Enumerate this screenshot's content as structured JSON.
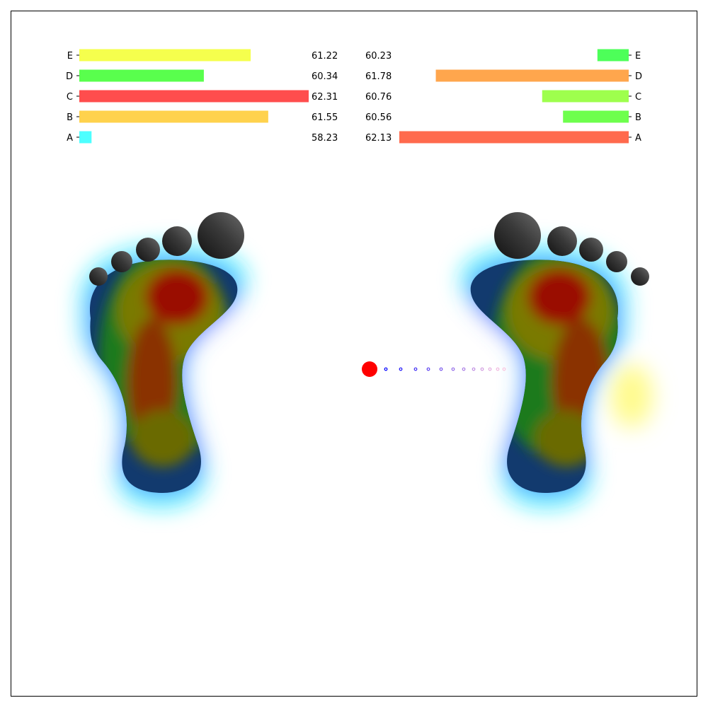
{
  "chart_data": [
    {
      "type": "bar",
      "orientation": "horizontal",
      "side": "left",
      "categories": [
        "A",
        "B",
        "C",
        "D",
        "E"
      ],
      "values": [
        58.23,
        61.55,
        62.31,
        60.34,
        61.22
      ],
      "value_labels": [
        "58.23",
        "61.55",
        "62.31",
        "60.34",
        "61.22"
      ],
      "colors": [
        "#4dffff",
        "#ffd24d",
        "#ff4d4d",
        "#59ff4d",
        "#f5ff4d"
      ],
      "xlim": [
        58.0,
        62.31
      ]
    },
    {
      "type": "bar",
      "orientation": "horizontal",
      "side": "right",
      "inverted_x": true,
      "categories": [
        "A",
        "B",
        "C",
        "D",
        "E"
      ],
      "values": [
        62.13,
        60.56,
        60.76,
        61.78,
        60.23
      ],
      "value_labels": [
        "62.13",
        "60.56",
        "60.76",
        "61.78",
        "60.23"
      ],
      "colors": [
        "#ff6a4d",
        "#6eff4d",
        "#9eff4d",
        "#ffa64d",
        "#4dff59"
      ],
      "xlim": [
        59.93,
        62.13
      ]
    },
    {
      "type": "heatmap",
      "description_free": true,
      "maps": [
        {
          "foot": "left",
          "hotspots": 3
        },
        {
          "foot": "right",
          "hotspots": 3
        }
      ],
      "colormap": "jet"
    },
    {
      "type": "scatter",
      "center_of_pressure": {
        "current_marker_color": "#ff0000"
      },
      "trail_color_start": "#0000ff",
      "trail_color_end": "#ff8fbf",
      "trail_points": 12
    }
  ]
}
